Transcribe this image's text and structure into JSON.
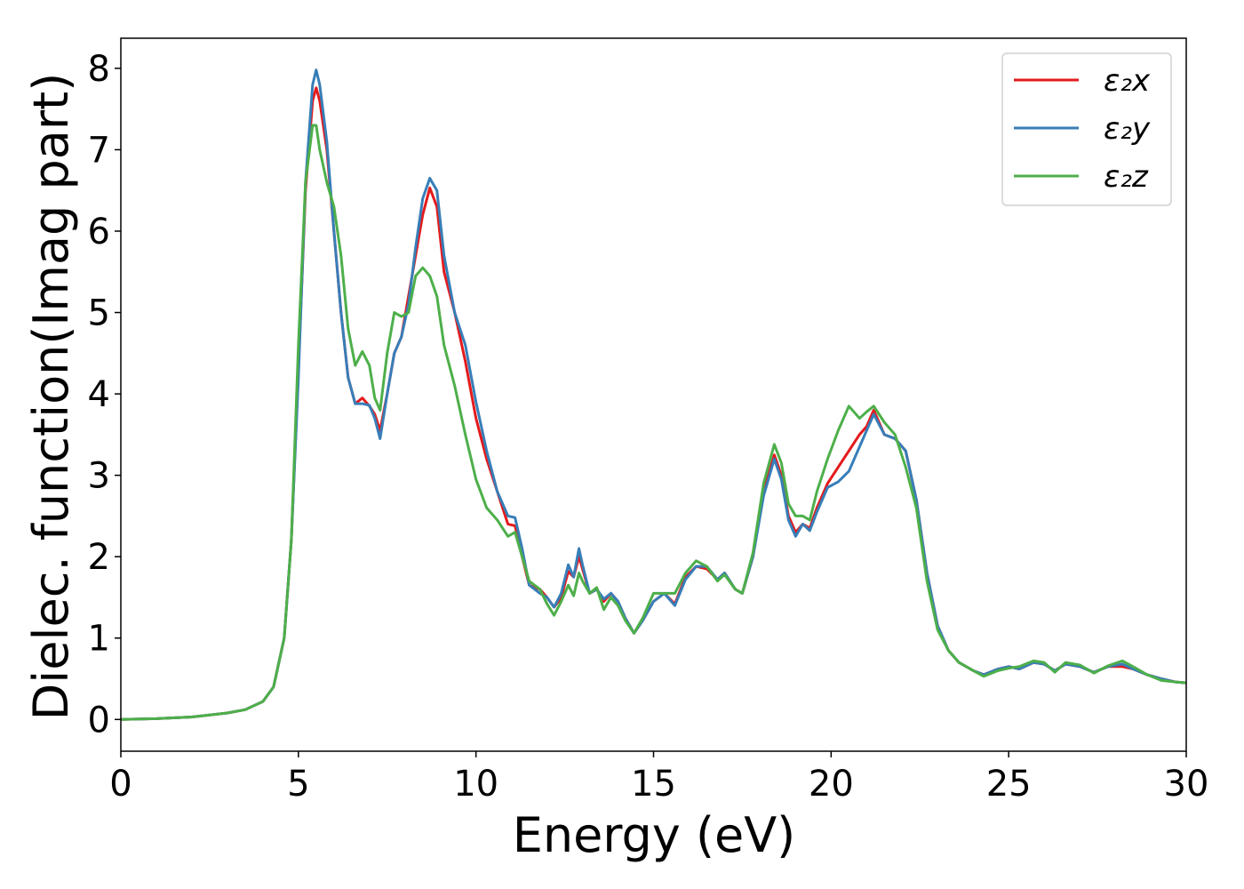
{
  "chart_data": {
    "type": "line",
    "xlabel": "Energy (eV)",
    "ylabel": "Dielec. function(Imag part)",
    "xlim": [
      0,
      30
    ],
    "ylim": [
      -0.39,
      8.37
    ],
    "xticks": [
      0,
      5,
      10,
      15,
      20,
      25,
      30
    ],
    "yticks": [
      0,
      1,
      2,
      3,
      4,
      5,
      6,
      7,
      8
    ],
    "legend": "upper right",
    "grid": false,
    "x": [
      0,
      1,
      2,
      3,
      3.5,
      4,
      4.3,
      4.6,
      4.8,
      5.0,
      5.2,
      5.4,
      5.5,
      5.6,
      5.8,
      6.0,
      6.2,
      6.4,
      6.6,
      6.8,
      7.0,
      7.15,
      7.3,
      7.5,
      7.7,
      7.9,
      8.1,
      8.3,
      8.5,
      8.7,
      8.9,
      9.1,
      9.4,
      9.7,
      10.0,
      10.3,
      10.6,
      10.9,
      11.1,
      11.3,
      11.5,
      11.8,
      12.0,
      12.2,
      12.4,
      12.6,
      12.75,
      12.9,
      13.0,
      13.2,
      13.4,
      13.6,
      13.8,
      14.0,
      14.2,
      14.45,
      14.7,
      15.0,
      15.3,
      15.6,
      15.9,
      16.2,
      16.5,
      16.8,
      17.0,
      17.3,
      17.5,
      17.8,
      18.1,
      18.4,
      18.6,
      18.8,
      19.0,
      19.2,
      19.4,
      19.6,
      19.9,
      20.2,
      20.5,
      20.8,
      21.0,
      21.2,
      21.5,
      21.8,
      22.1,
      22.4,
      22.7,
      23.0,
      23.3,
      23.6,
      24.0,
      24.3,
      24.7,
      25.0,
      25.3,
      25.7,
      26.0,
      26.3,
      26.6,
      27.0,
      27.4,
      27.8,
      28.2,
      28.5,
      28.9,
      29.3,
      29.7,
      30.0
    ],
    "series": [
      {
        "name": "ε₂x",
        "color": "#e41a1c",
        "values": [
          0,
          0.01,
          0.03,
          0.08,
          0.12,
          0.22,
          0.4,
          1.0,
          2.2,
          4.3,
          6.5,
          7.6,
          7.76,
          7.6,
          7.0,
          6.0,
          5.0,
          4.2,
          3.88,
          3.95,
          3.85,
          3.75,
          3.55,
          4.0,
          4.5,
          4.7,
          5.2,
          5.7,
          6.2,
          6.53,
          6.3,
          5.5,
          5.0,
          4.4,
          3.7,
          3.2,
          2.8,
          2.4,
          2.38,
          2.0,
          1.65,
          1.6,
          1.5,
          1.38,
          1.5,
          1.82,
          1.75,
          2.0,
          1.85,
          1.55,
          1.6,
          1.45,
          1.55,
          1.45,
          1.25,
          1.06,
          1.22,
          1.45,
          1.55,
          1.42,
          1.75,
          1.88,
          1.85,
          1.72,
          1.8,
          1.6,
          1.55,
          2.0,
          2.8,
          3.25,
          3.0,
          2.5,
          2.3,
          2.4,
          2.35,
          2.6,
          2.9,
          3.1,
          3.3,
          3.5,
          3.6,
          3.8,
          3.5,
          3.45,
          3.3,
          2.7,
          1.8,
          1.15,
          0.85,
          0.7,
          0.6,
          0.55,
          0.62,
          0.65,
          0.62,
          0.7,
          0.68,
          0.6,
          0.68,
          0.65,
          0.58,
          0.65,
          0.65,
          0.62,
          0.55,
          0.5,
          0.46,
          0.45
        ]
      },
      {
        "name": "ε₂y",
        "color": "#377eb8",
        "values": [
          0,
          0.01,
          0.03,
          0.08,
          0.12,
          0.22,
          0.4,
          1.0,
          2.2,
          4.2,
          6.6,
          7.8,
          7.98,
          7.8,
          7.1,
          6.0,
          5.0,
          4.2,
          3.88,
          3.88,
          3.86,
          3.7,
          3.45,
          4.0,
          4.5,
          4.7,
          5.1,
          5.8,
          6.4,
          6.65,
          6.5,
          5.7,
          5.0,
          4.6,
          3.9,
          3.3,
          2.8,
          2.5,
          2.48,
          2.1,
          1.65,
          1.55,
          1.5,
          1.38,
          1.55,
          1.9,
          1.75,
          2.1,
          1.9,
          1.55,
          1.6,
          1.48,
          1.55,
          1.45,
          1.25,
          1.06,
          1.22,
          1.45,
          1.55,
          1.4,
          1.72,
          1.88,
          1.88,
          1.72,
          1.8,
          1.6,
          1.55,
          2.0,
          2.75,
          3.2,
          2.95,
          2.45,
          2.25,
          2.4,
          2.32,
          2.55,
          2.85,
          2.92,
          3.05,
          3.35,
          3.55,
          3.75,
          3.5,
          3.45,
          3.3,
          2.7,
          1.8,
          1.15,
          0.85,
          0.7,
          0.6,
          0.55,
          0.62,
          0.65,
          0.62,
          0.7,
          0.68,
          0.6,
          0.68,
          0.65,
          0.58,
          0.65,
          0.68,
          0.62,
          0.55,
          0.5,
          0.46,
          0.45
        ]
      },
      {
        "name": "ε₂z",
        "color": "#4daf4a",
        "values": [
          0,
          0.01,
          0.03,
          0.08,
          0.12,
          0.22,
          0.4,
          1.0,
          2.2,
          4.6,
          6.6,
          7.3,
          7.3,
          7.0,
          6.6,
          6.3,
          5.7,
          4.8,
          4.35,
          4.52,
          4.35,
          3.95,
          3.8,
          4.5,
          5.0,
          4.95,
          5.0,
          5.45,
          5.55,
          5.45,
          5.2,
          4.6,
          4.1,
          3.5,
          2.95,
          2.6,
          2.45,
          2.25,
          2.3,
          2.0,
          1.7,
          1.6,
          1.42,
          1.28,
          1.45,
          1.65,
          1.52,
          1.8,
          1.7,
          1.55,
          1.62,
          1.35,
          1.5,
          1.4,
          1.22,
          1.06,
          1.25,
          1.55,
          1.55,
          1.55,
          1.8,
          1.95,
          1.88,
          1.7,
          1.78,
          1.6,
          1.55,
          2.05,
          2.9,
          3.38,
          3.15,
          2.65,
          2.5,
          2.5,
          2.45,
          2.8,
          3.2,
          3.55,
          3.85,
          3.7,
          3.78,
          3.85,
          3.65,
          3.5,
          3.1,
          2.6,
          1.7,
          1.1,
          0.85,
          0.7,
          0.6,
          0.53,
          0.6,
          0.63,
          0.65,
          0.72,
          0.7,
          0.58,
          0.7,
          0.67,
          0.57,
          0.66,
          0.72,
          0.65,
          0.55,
          0.48,
          0.46,
          0.45
        ]
      }
    ]
  }
}
